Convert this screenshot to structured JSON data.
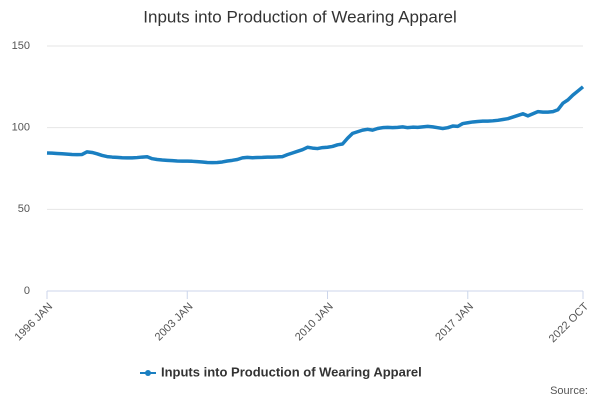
{
  "chart_data": {
    "type": "line",
    "title": "Inputs into Production of Wearing Apparel",
    "source": "Source:",
    "x": [
      "1996 JAN",
      "1996 APR",
      "1996 JUL",
      "1996 OCT",
      "1997 JAN",
      "1997 APR",
      "1997 JUL",
      "1997 OCT",
      "1998 JAN",
      "1998 APR",
      "1998 JUL",
      "1998 OCT",
      "1999 JAN",
      "1999 APR",
      "1999 JUL",
      "1999 OCT",
      "2000 JAN",
      "2000 APR",
      "2000 JUL",
      "2000 OCT",
      "2001 JAN",
      "2001 APR",
      "2001 JUL",
      "2001 OCT",
      "2002 JAN",
      "2002 APR",
      "2002 JUL",
      "2002 OCT",
      "2003 JAN",
      "2003 APR",
      "2003 JUL",
      "2003 OCT",
      "2004 JAN",
      "2004 APR",
      "2004 JUL",
      "2004 OCT",
      "2005 JAN",
      "2005 APR",
      "2005 JUL",
      "2005 OCT",
      "2006 JAN",
      "2006 APR",
      "2006 JUL",
      "2006 OCT",
      "2007 JAN",
      "2007 APR",
      "2007 JUL",
      "2007 OCT",
      "2008 JAN",
      "2008 APR",
      "2008 JUL",
      "2008 OCT",
      "2009 JAN",
      "2009 APR",
      "2009 JUL",
      "2009 OCT",
      "2010 JAN",
      "2010 APR",
      "2010 JUL",
      "2010 OCT",
      "2011 JAN",
      "2011 APR",
      "2011 JUL",
      "2011 OCT",
      "2012 JAN",
      "2012 APR",
      "2012 JUL",
      "2012 OCT",
      "2013 JAN",
      "2013 APR",
      "2013 JUL",
      "2013 OCT",
      "2014 JAN",
      "2014 APR",
      "2014 JUL",
      "2014 OCT",
      "2015 JAN",
      "2015 APR",
      "2015 JUL",
      "2015 OCT",
      "2016 JAN",
      "2016 APR",
      "2016 JUL",
      "2016 OCT",
      "2017 JAN",
      "2017 APR",
      "2017 JUL",
      "2017 OCT",
      "2018 JAN",
      "2018 APR",
      "2018 JUL",
      "2018 OCT",
      "2019 JAN",
      "2019 APR",
      "2019 JUL",
      "2019 OCT",
      "2020 JAN",
      "2020 APR",
      "2020 JUL",
      "2020 OCT",
      "2021 JAN",
      "2021 APR",
      "2021 JUL",
      "2021 OCT",
      "2022 JAN",
      "2022 APR",
      "2022 JUL",
      "2022 OCT"
    ],
    "series": [
      {
        "name": "Inputs into Production of Wearing Apparel",
        "color": "#1a7fc1",
        "values": [
          84.5,
          84.4,
          84.2,
          84.0,
          83.8,
          83.6,
          83.5,
          83.6,
          85.2,
          84.8,
          84.0,
          83.0,
          82.3,
          82.0,
          81.8,
          81.6,
          81.5,
          81.5,
          81.7,
          82.0,
          82.2,
          81.0,
          80.5,
          80.2,
          80.0,
          79.8,
          79.6,
          79.5,
          79.5,
          79.4,
          79.2,
          79.0,
          78.7,
          78.6,
          78.7,
          79.0,
          79.6,
          80.0,
          80.5,
          81.5,
          81.8,
          81.6,
          81.7,
          81.8,
          82.0,
          82.0,
          82.1,
          82.3,
          83.5,
          84.5,
          85.5,
          86.5,
          88.0,
          87.5,
          87.2,
          87.8,
          88.0,
          88.5,
          89.5,
          90.0,
          93.5,
          96.5,
          97.5,
          98.5,
          99.0,
          98.5,
          99.5,
          100.0,
          100.2,
          100.0,
          100.2,
          100.5,
          100.0,
          100.3,
          100.2,
          100.5,
          100.8,
          100.5,
          100.0,
          99.5,
          100.0,
          101.0,
          100.8,
          102.5,
          103.0,
          103.5,
          103.8,
          104.0,
          104.0,
          104.2,
          104.5,
          105.0,
          105.5,
          106.5,
          107.5,
          108.5,
          107.2,
          108.5,
          109.8,
          109.5,
          109.5,
          109.8,
          111.0,
          115.0,
          117.0,
          120.0,
          122.5,
          125.0
        ]
      }
    ],
    "xticks": [
      "1996 JAN",
      "2003 JAN",
      "2010 JAN",
      "2017 JAN",
      "2022 OCT"
    ],
    "ylim": [
      0,
      150
    ],
    "yticks": [
      0,
      50,
      100,
      150
    ],
    "grid": true
  }
}
